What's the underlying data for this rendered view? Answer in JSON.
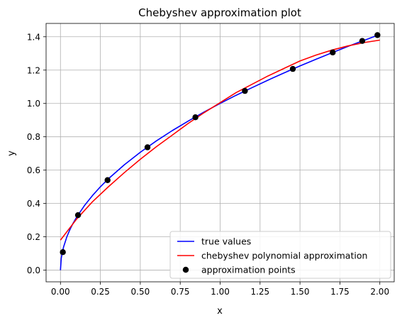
{
  "chart_data": {
    "type": "line",
    "title": "Chebyshev approximation plot",
    "xlabel": "x",
    "ylabel": "y",
    "xlim": [
      -0.09,
      2.09
    ],
    "ylim": [
      -0.07,
      1.48
    ],
    "xticks": [
      0.0,
      0.25,
      0.5,
      0.75,
      1.0,
      1.25,
      1.5,
      1.75,
      2.0
    ],
    "xtick_labels": [
      "0.00",
      "0.25",
      "0.50",
      "0.75",
      "1.00",
      "1.25",
      "1.50",
      "1.75",
      "2.00"
    ],
    "yticks": [
      0.0,
      0.2,
      0.4,
      0.6,
      0.8,
      1.0,
      1.2,
      1.4
    ],
    "ytick_labels": [
      "0.0",
      "0.2",
      "0.4",
      "0.6",
      "0.8",
      "1.0",
      "1.2",
      "1.4"
    ],
    "grid": true,
    "legend_position": "lower-right",
    "series": [
      {
        "name": "true values",
        "kind": "line",
        "color": "#0000ff",
        "x": [
          0.0,
          0.005,
          0.01,
          0.02,
          0.04,
          0.06,
          0.08,
          0.1,
          0.15,
          0.2,
          0.25,
          0.3,
          0.4,
          0.5,
          0.6,
          0.7,
          0.8,
          0.9,
          1.0,
          1.1,
          1.2,
          1.3,
          1.4,
          1.5,
          1.6,
          1.7,
          1.8,
          1.9,
          2.0
        ],
        "y": [
          0.0,
          0.071,
          0.1,
          0.141,
          0.2,
          0.245,
          0.283,
          0.316,
          0.387,
          0.447,
          0.5,
          0.548,
          0.632,
          0.707,
          0.775,
          0.837,
          0.894,
          0.949,
          1.0,
          1.049,
          1.095,
          1.14,
          1.183,
          1.225,
          1.265,
          1.304,
          1.342,
          1.378,
          1.414
        ]
      },
      {
        "name": "chebyshev polynomial approximation",
        "kind": "line",
        "color": "#ff0000",
        "x": [
          0.0,
          0.1,
          0.2,
          0.3,
          0.4,
          0.5,
          0.6,
          0.7,
          0.8,
          0.9,
          1.0,
          1.1,
          1.2,
          1.3,
          1.4,
          1.5,
          1.6,
          1.7,
          1.8,
          1.9,
          2.0
        ],
        "y": [
          0.18,
          0.305,
          0.41,
          0.5,
          0.585,
          0.665,
          0.74,
          0.81,
          0.88,
          0.945,
          1.005,
          1.065,
          1.115,
          1.165,
          1.21,
          1.255,
          1.29,
          1.32,
          1.345,
          1.365,
          1.38
        ]
      },
      {
        "name": "approximation points",
        "kind": "scatter",
        "color": "#000000",
        "x": [
          0.015,
          0.11,
          0.295,
          0.545,
          0.845,
          1.155,
          1.455,
          1.705,
          1.89,
          1.985
        ],
        "y": [
          0.108,
          0.33,
          0.54,
          0.737,
          0.917,
          1.075,
          1.207,
          1.306,
          1.375,
          1.41
        ]
      }
    ]
  }
}
